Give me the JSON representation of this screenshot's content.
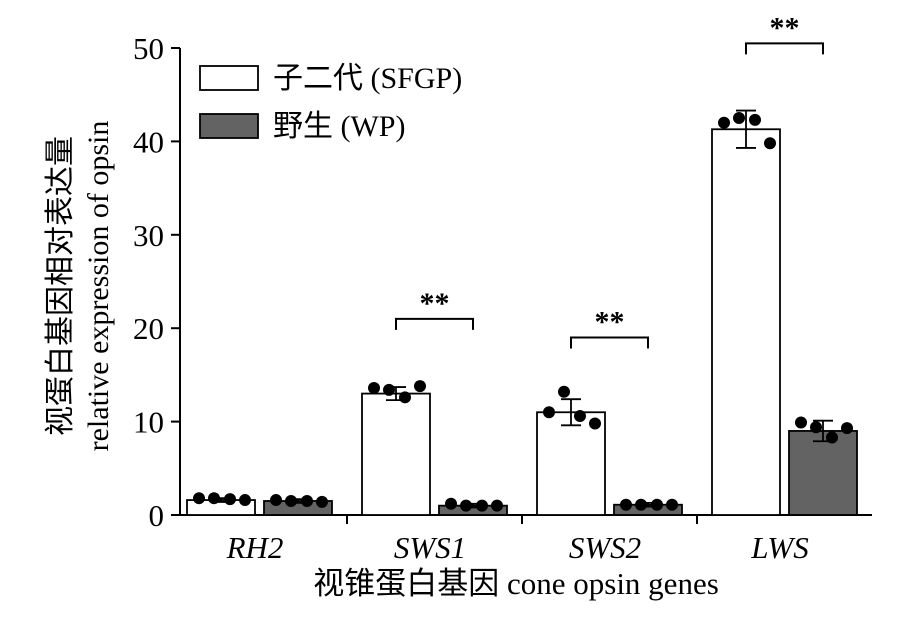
{
  "chart_data": {
    "type": "bar",
    "categories": [
      "RH2",
      "SWS1",
      "SWS2",
      "LWS"
    ],
    "xlabel": "视锥蛋白基因 cone opsin genes",
    "ylabel_cn": "视蛋白基因相对表达量",
    "ylabel_en": "relative expression of opsin",
    "ylim": [
      0,
      50
    ],
    "yticks": [
      0,
      10,
      20,
      30,
      40,
      50
    ],
    "legend_position": "top-left",
    "series": [
      {
        "name": "子二代 (SFGP)",
        "color": "#ffffff",
        "values": [
          1.6,
          13.0,
          11.0,
          41.3
        ],
        "errors": [
          0.2,
          0.7,
          1.4,
          2.0
        ],
        "points": [
          [
            1.8,
            1.8,
            1.7,
            1.6
          ],
          [
            13.6,
            13.4,
            12.6,
            13.8
          ],
          [
            11.0,
            13.2,
            10.6,
            9.8
          ],
          [
            42.0,
            42.5,
            42.3,
            39.8
          ]
        ]
      },
      {
        "name": "野生 (WP)",
        "color": "#636363",
        "values": [
          1.5,
          1.0,
          1.1,
          9.0
        ],
        "errors": [
          0.2,
          0.2,
          0.2,
          1.1
        ],
        "points": [
          [
            1.6,
            1.5,
            1.5,
            1.4
          ],
          [
            1.2,
            1.0,
            1.0,
            1.0
          ],
          [
            1.1,
            1.1,
            1.1,
            1.1
          ],
          [
            9.9,
            9.4,
            8.3,
            9.3
          ]
        ]
      }
    ],
    "significance": [
      {
        "category": "SWS1",
        "label": "**",
        "level": 21.0
      },
      {
        "category": "SWS2",
        "label": "**",
        "level": 19.0
      },
      {
        "category": "LWS",
        "label": "**",
        "level": 50.5
      }
    ]
  }
}
